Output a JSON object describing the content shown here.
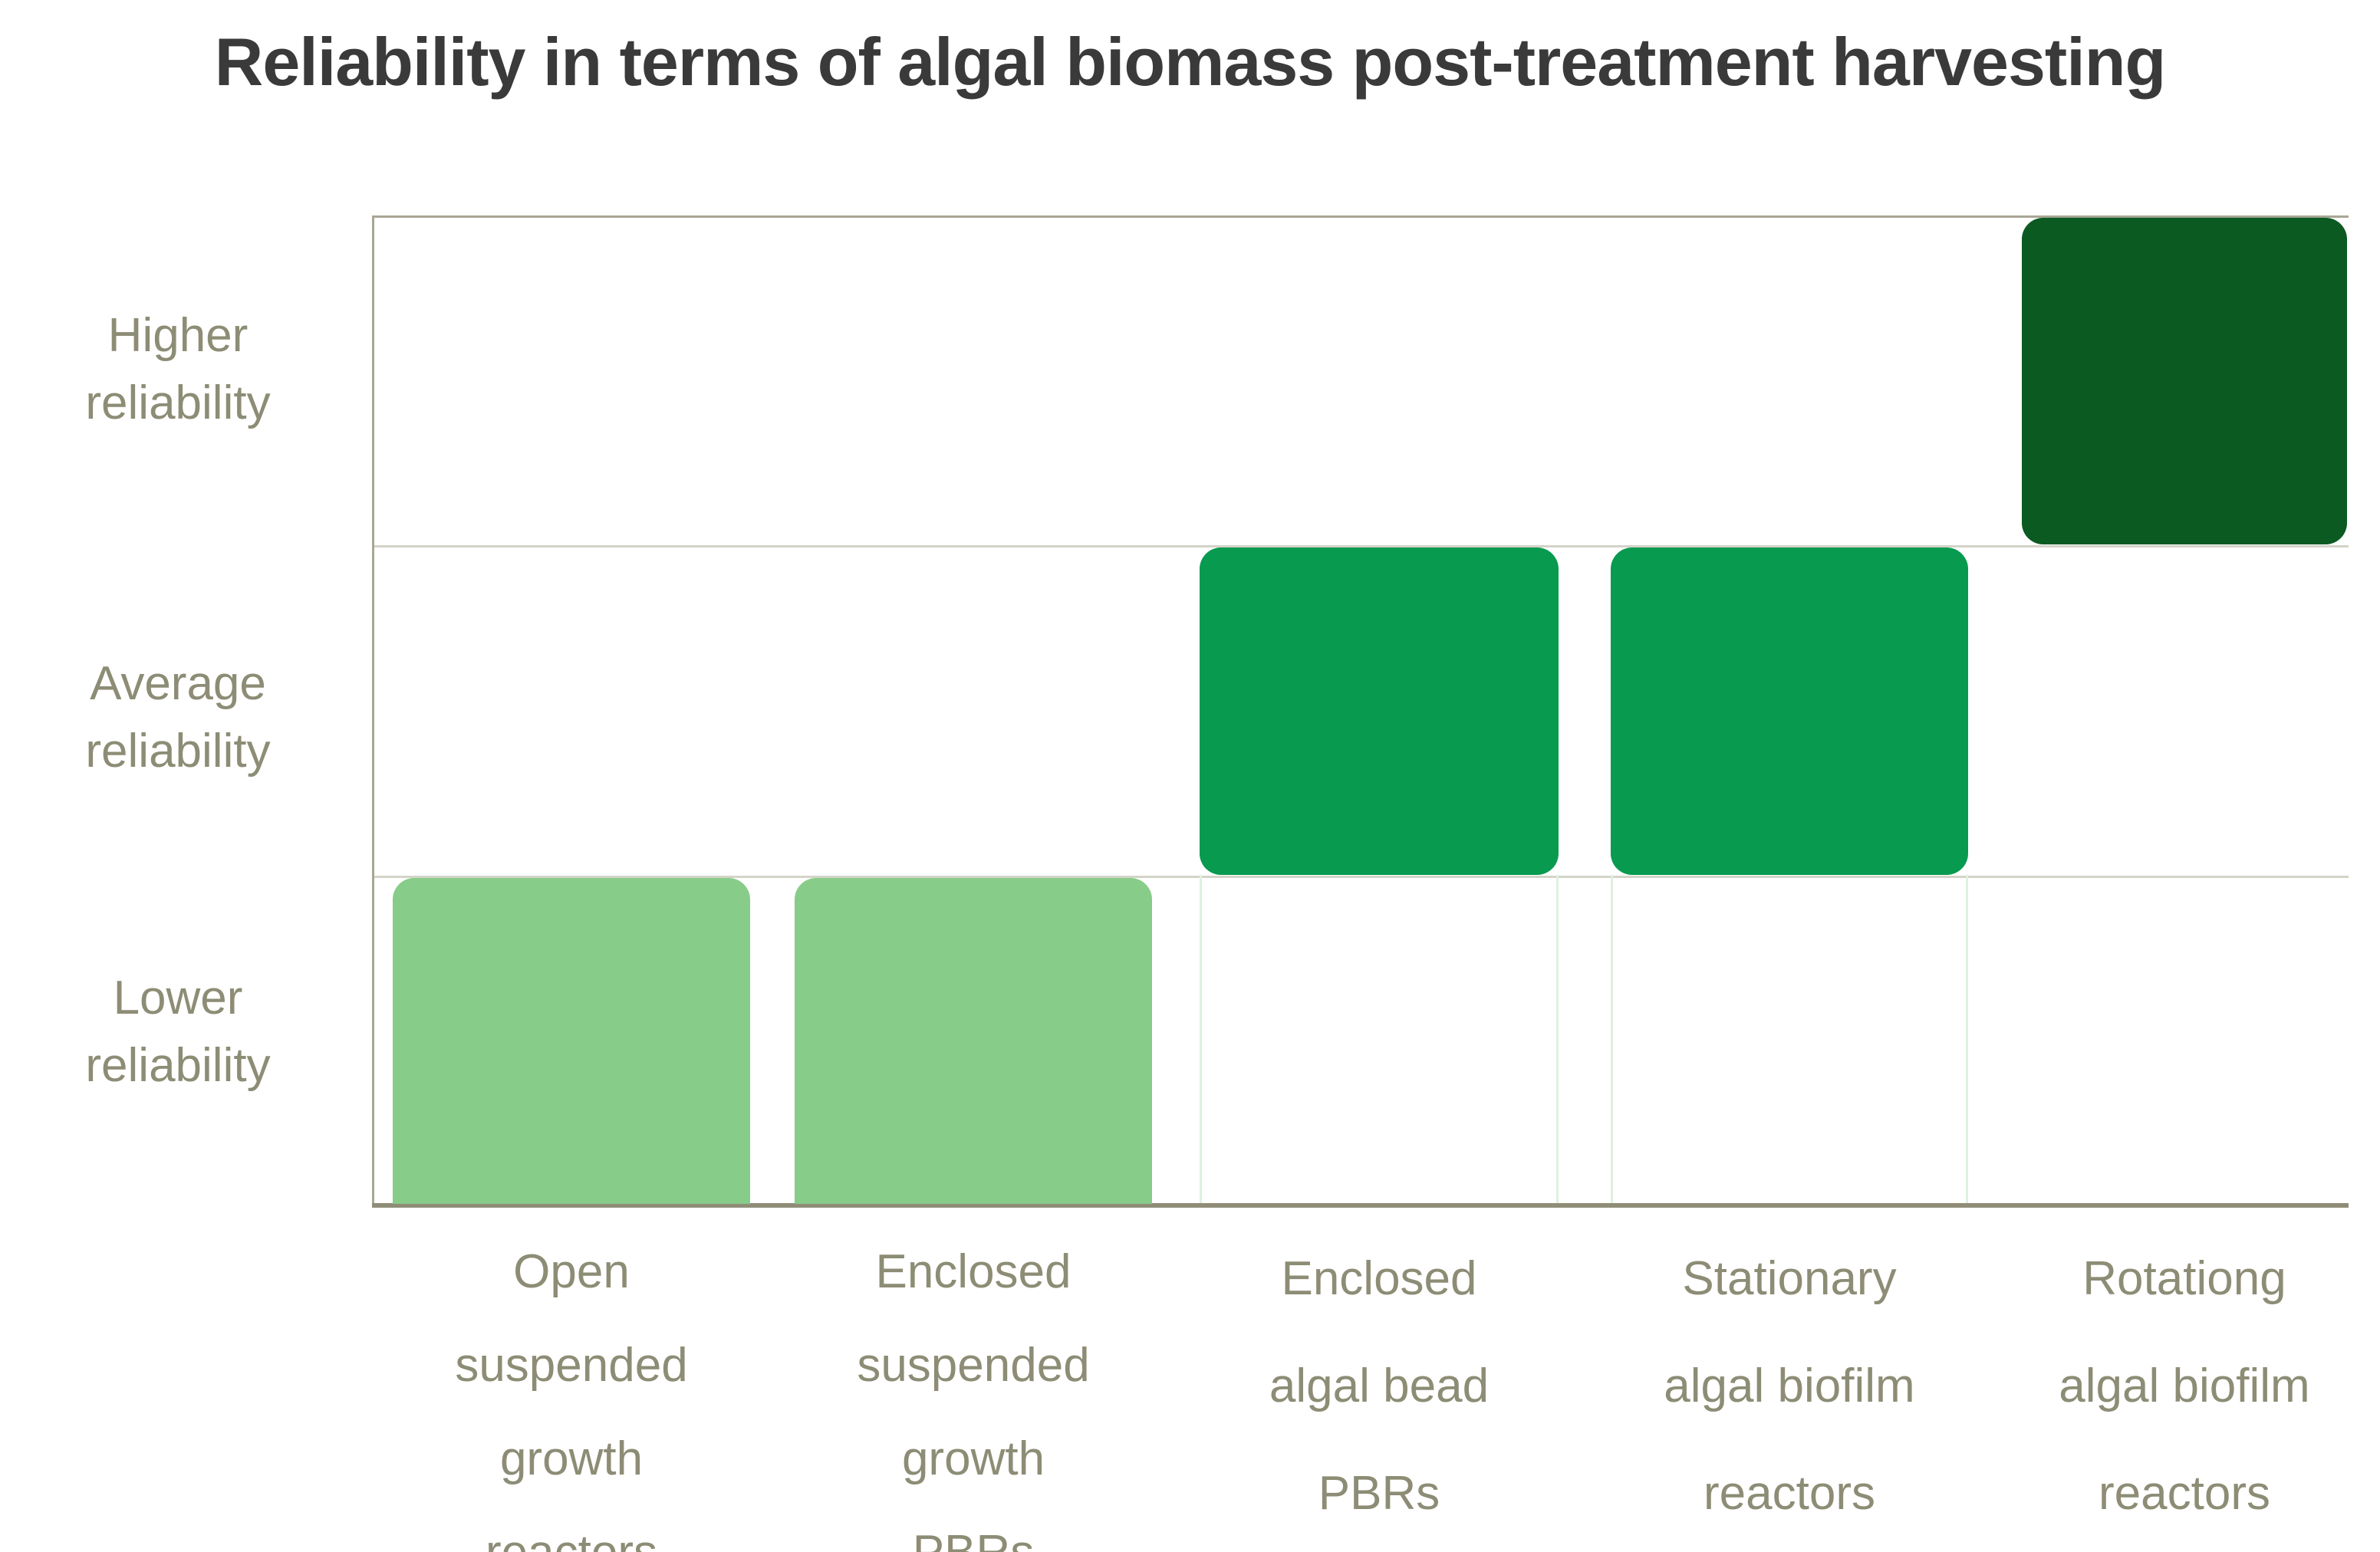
{
  "title": "Reliability in terms of algal biomass post-treatment harvesting",
  "chart_data": {
    "type": "bar",
    "title": "Reliability in terms of algal biomass post-treatment harvesting",
    "categories": [
      "Open suspended growth reactors",
      "Enclosed suspended growth PBRs",
      "Enclosed algal bead PBRs",
      "Stationary algal biofilm reactors",
      "Rotationg algal biofilm reactors"
    ],
    "category_label_lines": [
      [
        "Open",
        "suspended",
        "growth",
        "reactors"
      ],
      [
        "Enclosed",
        "suspended",
        "growth",
        "PBRs"
      ],
      [
        "Enclosed",
        "algal bead",
        "PBRs"
      ],
      [
        "Stationary",
        "algal biofilm",
        "reactors"
      ],
      [
        "Rotationg",
        "algal biofilm",
        "reactors"
      ]
    ],
    "values": [
      1,
      1,
      2,
      2,
      3
    ],
    "value_meaning": {
      "1": "Lower reliability",
      "2": "Average reliability",
      "3": "Higher reliability"
    },
    "y_tick_labels": [
      "Higher reliability",
      "Average reliability",
      "Lower reliability"
    ],
    "y_tick_label_lines": [
      [
        "Higher",
        "reliability"
      ],
      [
        "Average",
        "reliability"
      ],
      [
        "Lower",
        "reliability"
      ]
    ],
    "xlabel": "",
    "ylabel": "",
    "ylim": [
      0,
      3
    ],
    "grid": "horizontal band lines only",
    "legend": "none",
    "bar_style": "each bar is a rounded block occupying only its reliability band",
    "bar_colors": [
      "#87cc89",
      "#87cc89",
      "#089a4f",
      "#089a4f",
      "#0a5a22"
    ]
  },
  "colors": {
    "light_green": "#87cc89",
    "medium_green": "#089a4f",
    "dark_green": "#0a5a22",
    "axis_text": "#8d8c75",
    "title_text": "#3a3a3a",
    "axis_line_strong": "#8f8d78",
    "axis_line": "#a8a695",
    "grid_line": "#d4d3c8",
    "bar_edge_guide": "#dff0df"
  }
}
